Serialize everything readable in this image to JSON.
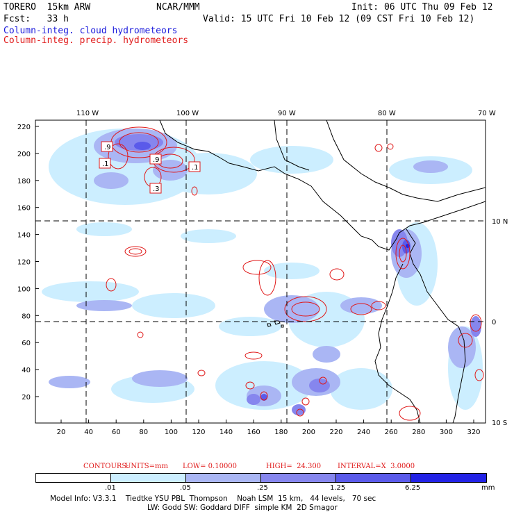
{
  "header": {
    "model": "TORERO  15km ARW",
    "center": "NCAR/MMM",
    "init": "Init: 06 UTC Thu 09 Feb 12",
    "fcst": "Fcst:   33 h",
    "valid": "Valid: 15 UTC Fri 10 Feb 12 (09 CST Fri 10 Feb 12)",
    "field1": "Column-integ. cloud hydrometeors",
    "field2": "Column-integ. precip. hydrometeors"
  },
  "colors": {
    "cloud": "#1a1adc",
    "precip": "#e01818",
    "shade_levels": [
      "#ffffff",
      "#cceeff",
      "#aab6f4",
      "#8686ee",
      "#5a5aea",
      "#2222e6"
    ]
  },
  "map": {
    "lon_labels_top": [
      "110 W",
      "100 W",
      "90 W",
      "80 W",
      "70 W"
    ],
    "lat_labels_right": [
      "10 N",
      "0",
      "10 S"
    ],
    "y_ticks": [
      "220",
      "200",
      "180",
      "160",
      "140",
      "120",
      "100",
      "80",
      "60",
      "40",
      "20"
    ],
    "x_ticks": [
      "20",
      "40",
      "60",
      "80",
      "100",
      "120",
      "140",
      "160",
      "180",
      "200",
      "220",
      "240",
      "260",
      "280",
      "300",
      "320"
    ],
    "box_labels": [
      ".9",
      ".1",
      ".9",
      ".1",
      ".3"
    ]
  },
  "contour_info": {
    "label": "CONTOURS:",
    "units": "UNITS=mm",
    "low": "LOW= 0.10000",
    "high": "HIGH=  24.300",
    "interval": "INTERVAL=X  3.0000"
  },
  "colorbar": {
    "labels": [
      ".01",
      ".05",
      ".25",
      "1.25",
      "6.25"
    ],
    "unit": "mm"
  },
  "footer": {
    "line1": "Model Info: V3.3.1    Tiedtke YSU PBL  Thompson    Noah LSM  15 km,   44 levels,   70 sec",
    "line2": "LW: Godd SW: Goddard DIFF  simple KM  2D Smagor"
  }
}
